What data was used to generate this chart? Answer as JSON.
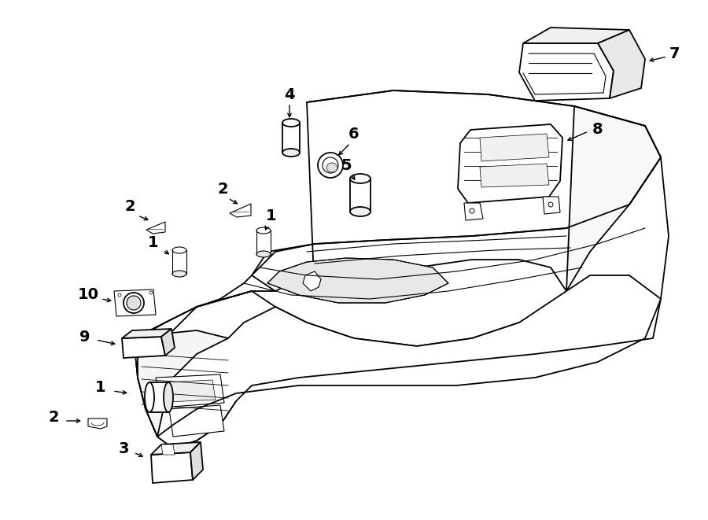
{
  "background_color": "#ffffff",
  "line_color": "#000000",
  "figsize": [
    9.0,
    6.61
  ],
  "dpi": 100,
  "lw_main": 1.3,
  "lw_thin": 0.8,
  "label_fontsize": 14
}
